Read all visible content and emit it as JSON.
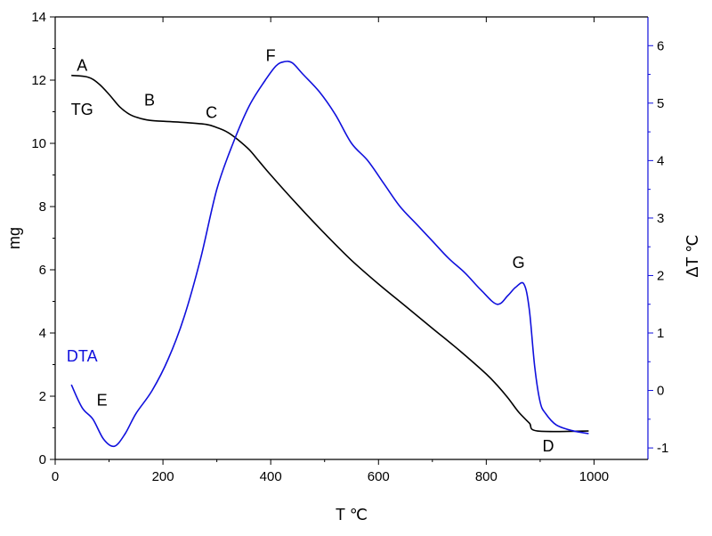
{
  "chart_data": {
    "type": "line",
    "xlabel": "T ℃",
    "ylabel": "mg",
    "y2label": "ΔT ℃",
    "xlim": [
      0,
      1100
    ],
    "ylim": [
      0,
      14
    ],
    "y2lim": [
      -1.2,
      6.5
    ],
    "xticks": [
      0,
      200,
      400,
      600,
      800,
      1000
    ],
    "yticks": [
      0,
      2,
      4,
      6,
      8,
      10,
      12,
      14
    ],
    "y2ticks": [
      -1,
      0,
      1,
      2,
      3,
      4,
      5,
      6
    ],
    "grid": false,
    "colors": {
      "tg": "#000000",
      "dta": "#1010dd",
      "axis": "#000000",
      "axis_right": "#1010dd"
    },
    "series": [
      {
        "name": "TG",
        "axis": "left",
        "x": [
          30,
          60,
          80,
          100,
          120,
          140,
          160,
          180,
          200,
          240,
          280,
          300,
          320,
          340,
          360,
          380,
          400,
          450,
          500,
          550,
          600,
          650,
          700,
          750,
          800,
          820,
          840,
          860,
          880,
          895,
          990
        ],
        "y": [
          12.15,
          12.1,
          11.9,
          11.55,
          11.15,
          10.9,
          10.78,
          10.72,
          10.7,
          10.66,
          10.6,
          10.5,
          10.35,
          10.1,
          9.8,
          9.4,
          9.0,
          8.05,
          7.15,
          6.3,
          5.55,
          4.85,
          4.15,
          3.45,
          2.7,
          2.35,
          1.95,
          1.5,
          1.15,
          0.9,
          0.9
        ]
      },
      {
        "name": "DTA",
        "axis": "right",
        "x": [
          30,
          50,
          70,
          90,
          110,
          130,
          150,
          180,
          210,
          240,
          270,
          300,
          330,
          360,
          390,
          410,
          425,
          440,
          460,
          490,
          520,
          550,
          580,
          610,
          640,
          670,
          700,
          730,
          760,
          790,
          820,
          840,
          855,
          870,
          880,
          890,
          900,
          910,
          930,
          960,
          990
        ],
        "y": [
          0.1,
          -0.3,
          -0.5,
          -0.85,
          -0.97,
          -0.75,
          -0.4,
          0.0,
          0.55,
          1.3,
          2.3,
          3.5,
          4.3,
          4.95,
          5.4,
          5.65,
          5.72,
          5.7,
          5.5,
          5.2,
          4.8,
          4.3,
          4.0,
          3.6,
          3.2,
          2.9,
          2.6,
          2.3,
          2.05,
          1.75,
          1.5,
          1.65,
          1.8,
          1.85,
          1.4,
          0.4,
          -0.2,
          -0.4,
          -0.6,
          -0.7,
          -0.75
        ]
      }
    ],
    "annotations": [
      {
        "text": "A",
        "x": 50,
        "y": 12.3,
        "axis": "left"
      },
      {
        "text": "B",
        "x": 175,
        "y": 11.2,
        "axis": "left"
      },
      {
        "text": "C",
        "x": 290,
        "y": 10.8,
        "axis": "left"
      },
      {
        "text": "TG",
        "x": 50,
        "y": 10.9,
        "axis": "left"
      },
      {
        "text": "D",
        "x": 915,
        "y": 0.25,
        "axis": "left"
      },
      {
        "text": "DTA",
        "x": 50,
        "y": 3.1,
        "axis": "left"
      },
      {
        "text": "E",
        "x": 87,
        "y": 1.7,
        "axis": "left"
      },
      {
        "text": "F",
        "x": 400,
        "y": 12.6,
        "axis": "left"
      },
      {
        "text": "G",
        "x": 860,
        "y": 6.05,
        "axis": "left"
      }
    ]
  }
}
